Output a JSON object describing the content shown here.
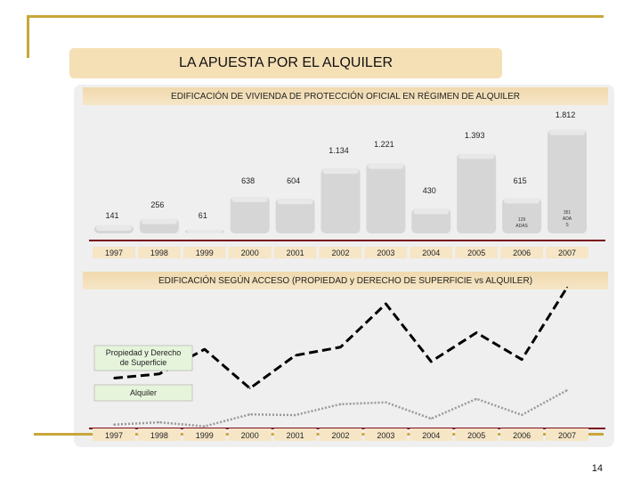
{
  "slide": {
    "title": "LA APUESTA POR EL ALQUILER",
    "page_number": "14"
  },
  "chart_data": [
    {
      "type": "bar",
      "title": "EDIFICACIÓN DE VIVIENDA DE PROTECCIÓN OFICIAL EN RÉGIMEN DE ALQUILER",
      "categories": [
        "1997",
        "1998",
        "1999",
        "2000",
        "2001",
        "2002",
        "2003",
        "2004",
        "2005",
        "2006",
        "2007"
      ],
      "values": [
        141,
        256,
        61,
        638,
        604,
        1134,
        1221,
        430,
        1393,
        615,
        1812
      ],
      "value_labels": [
        "141",
        "256",
        "61",
        "638",
        "604",
        "1.134",
        "1.221",
        "430",
        "1.393",
        "615",
        "1.812"
      ],
      "sub_labels": [
        {
          "category": "2006",
          "text": "129 ADAS"
        },
        {
          "category": "2007",
          "text": "351 ADA S"
        }
      ],
      "xlabel": "",
      "ylabel": "",
      "ylim": [
        0,
        1900
      ],
      "grid": false,
      "legend": "none"
    },
    {
      "type": "line",
      "title": "EDIFICACIÓN SEGÚN ACCESO (PROPIEDAD y DERECHO DE SUPERFICIE vs ALQUILER)",
      "categories": [
        "1997",
        "1998",
        "1999",
        "2000",
        "2001",
        "2002",
        "2003",
        "2004",
        "2005",
        "2006",
        "2007"
      ],
      "series": [
        {
          "name": "Propiedad y Derecho de Superficie",
          "values": [
            2400,
            2600,
            3800,
            1900,
            3500,
            3900,
            6000,
            3200,
            4600,
            3300,
            6800
          ],
          "color": "#000000",
          "dash": "dashed"
        },
        {
          "name": "Alquiler",
          "values": [
            141,
            256,
            61,
            638,
            604,
            1134,
            1221,
            430,
            1393,
            615,
            1812
          ],
          "color": "#999999",
          "dash": "dotted"
        }
      ],
      "ylim": [
        0,
        7000
      ],
      "grid": false,
      "legend": "left"
    }
  ]
}
